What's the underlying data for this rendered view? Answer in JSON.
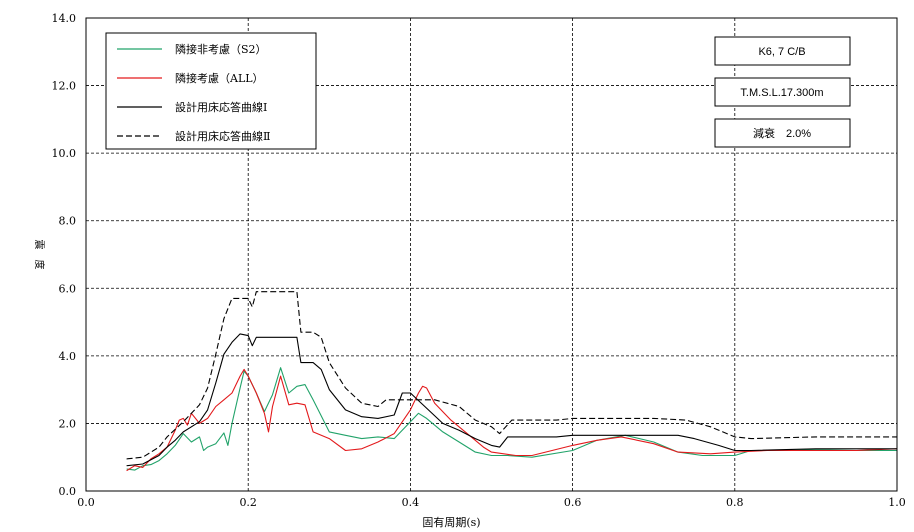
{
  "chart_data": {
    "type": "line",
    "title": "",
    "xlabel": "固有周期(s)",
    "ylabel": "震　度",
    "xlim": [
      0.0,
      1.0
    ],
    "ylim": [
      0.0,
      14.0
    ],
    "x_ticks": [
      "0.0",
      "0.2",
      "0.4",
      "0.6",
      "0.8",
      "1.0"
    ],
    "y_ticks": [
      "0.0",
      "2.0",
      "4.0",
      "6.0",
      "8.0",
      "10.0",
      "12.0",
      "14.0"
    ],
    "grid": true,
    "legend_position": "top-left",
    "info_boxes": [
      "K6, 7 C/B",
      "T.M.S.L.17.300m",
      "減衰　2.0%"
    ],
    "series": [
      {
        "name": "隣接非考慮（S2）",
        "color": "#22a36a",
        "dash": "solid",
        "points": [
          [
            0.05,
            0.65
          ],
          [
            0.06,
            0.62
          ],
          [
            0.07,
            0.75
          ],
          [
            0.08,
            0.78
          ],
          [
            0.09,
            0.9
          ],
          [
            0.1,
            1.1
          ],
          [
            0.11,
            1.35
          ],
          [
            0.12,
            1.7
          ],
          [
            0.13,
            1.45
          ],
          [
            0.14,
            1.6
          ],
          [
            0.145,
            1.2
          ],
          [
            0.15,
            1.3
          ],
          [
            0.16,
            1.4
          ],
          [
            0.17,
            1.72
          ],
          [
            0.175,
            1.35
          ],
          [
            0.18,
            2.0
          ],
          [
            0.19,
            3.05
          ],
          [
            0.195,
            3.55
          ],
          [
            0.2,
            3.4
          ],
          [
            0.21,
            2.9
          ],
          [
            0.22,
            2.35
          ],
          [
            0.23,
            2.85
          ],
          [
            0.24,
            3.65
          ],
          [
            0.25,
            2.9
          ],
          [
            0.26,
            3.1
          ],
          [
            0.27,
            3.15
          ],
          [
            0.28,
            2.7
          ],
          [
            0.3,
            1.75
          ],
          [
            0.32,
            1.65
          ],
          [
            0.34,
            1.55
          ],
          [
            0.36,
            1.6
          ],
          [
            0.38,
            1.55
          ],
          [
            0.4,
            2.05
          ],
          [
            0.41,
            2.3
          ],
          [
            0.42,
            2.15
          ],
          [
            0.44,
            1.75
          ],
          [
            0.46,
            1.45
          ],
          [
            0.48,
            1.15
          ],
          [
            0.5,
            1.05
          ],
          [
            0.52,
            1.05
          ],
          [
            0.55,
            1.0
          ],
          [
            0.6,
            1.2
          ],
          [
            0.63,
            1.5
          ],
          [
            0.665,
            1.65
          ],
          [
            0.7,
            1.45
          ],
          [
            0.73,
            1.15
          ],
          [
            0.76,
            1.05
          ],
          [
            0.8,
            1.05
          ],
          [
            0.82,
            1.2
          ],
          [
            0.86,
            1.2
          ],
          [
            0.9,
            1.22
          ],
          [
            0.95,
            1.2
          ],
          [
            1.0,
            1.2
          ]
        ]
      },
      {
        "name": "隣接考慮（ALL）",
        "color": "#e31a1c",
        "dash": "solid",
        "points": [
          [
            0.05,
            0.6
          ],
          [
            0.06,
            0.75
          ],
          [
            0.07,
            0.7
          ],
          [
            0.08,
            0.95
          ],
          [
            0.09,
            1.1
          ],
          [
            0.1,
            1.3
          ],
          [
            0.11,
            1.8
          ],
          [
            0.115,
            2.1
          ],
          [
            0.12,
            2.15
          ],
          [
            0.125,
            1.95
          ],
          [
            0.13,
            2.3
          ],
          [
            0.14,
            2.0
          ],
          [
            0.15,
            2.15
          ],
          [
            0.16,
            2.5
          ],
          [
            0.17,
            2.7
          ],
          [
            0.18,
            2.9
          ],
          [
            0.19,
            3.4
          ],
          [
            0.195,
            3.6
          ],
          [
            0.2,
            3.4
          ],
          [
            0.21,
            2.9
          ],
          [
            0.22,
            2.3
          ],
          [
            0.225,
            1.75
          ],
          [
            0.23,
            2.5
          ],
          [
            0.24,
            3.4
          ],
          [
            0.25,
            2.55
          ],
          [
            0.26,
            2.6
          ],
          [
            0.27,
            2.55
          ],
          [
            0.28,
            1.75
          ],
          [
            0.3,
            1.55
          ],
          [
            0.32,
            1.2
          ],
          [
            0.34,
            1.25
          ],
          [
            0.36,
            1.45
          ],
          [
            0.38,
            1.7
          ],
          [
            0.4,
            2.4
          ],
          [
            0.41,
            2.9
          ],
          [
            0.415,
            3.1
          ],
          [
            0.42,
            3.05
          ],
          [
            0.43,
            2.6
          ],
          [
            0.45,
            2.1
          ],
          [
            0.47,
            1.7
          ],
          [
            0.49,
            1.3
          ],
          [
            0.5,
            1.15
          ],
          [
            0.53,
            1.05
          ],
          [
            0.55,
            1.05
          ],
          [
            0.6,
            1.35
          ],
          [
            0.63,
            1.5
          ],
          [
            0.66,
            1.6
          ],
          [
            0.7,
            1.4
          ],
          [
            0.73,
            1.15
          ],
          [
            0.77,
            1.1
          ],
          [
            0.8,
            1.15
          ],
          [
            0.84,
            1.2
          ],
          [
            0.9,
            1.2
          ],
          [
            0.95,
            1.2
          ],
          [
            1.0,
            1.25
          ]
        ]
      },
      {
        "name": "設計用床応答曲線Ⅰ",
        "color": "#000000",
        "dash": "solid",
        "points": [
          [
            0.05,
            0.75
          ],
          [
            0.07,
            0.8
          ],
          [
            0.09,
            1.05
          ],
          [
            0.1,
            1.3
          ],
          [
            0.11,
            1.5
          ],
          [
            0.12,
            1.75
          ],
          [
            0.13,
            1.9
          ],
          [
            0.14,
            2.05
          ],
          [
            0.15,
            2.4
          ],
          [
            0.16,
            3.2
          ],
          [
            0.17,
            4.05
          ],
          [
            0.18,
            4.4
          ],
          [
            0.19,
            4.65
          ],
          [
            0.2,
            4.6
          ],
          [
            0.205,
            4.3
          ],
          [
            0.21,
            4.55
          ],
          [
            0.22,
            4.55
          ],
          [
            0.23,
            4.55
          ],
          [
            0.24,
            4.55
          ],
          [
            0.25,
            4.55
          ],
          [
            0.26,
            4.55
          ],
          [
            0.265,
            3.8
          ],
          [
            0.28,
            3.8
          ],
          [
            0.29,
            3.6
          ],
          [
            0.3,
            3.0
          ],
          [
            0.32,
            2.4
          ],
          [
            0.34,
            2.2
          ],
          [
            0.36,
            2.15
          ],
          [
            0.38,
            2.25
          ],
          [
            0.39,
            2.9
          ],
          [
            0.4,
            2.9
          ],
          [
            0.44,
            2.0
          ],
          [
            0.46,
            1.8
          ],
          [
            0.48,
            1.55
          ],
          [
            0.5,
            1.35
          ],
          [
            0.51,
            1.3
          ],
          [
            0.52,
            1.6
          ],
          [
            0.58,
            1.6
          ],
          [
            0.6,
            1.65
          ],
          [
            0.7,
            1.65
          ],
          [
            0.73,
            1.65
          ],
          [
            0.75,
            1.55
          ],
          [
            0.78,
            1.35
          ],
          [
            0.8,
            1.2
          ],
          [
            0.82,
            1.2
          ],
          [
            0.9,
            1.25
          ],
          [
            1.0,
            1.25
          ]
        ]
      },
      {
        "name": "設計用床応答曲線Ⅱ",
        "color": "#000000",
        "dash": "dashed",
        "points": [
          [
            0.05,
            0.95
          ],
          [
            0.07,
            1.0
          ],
          [
            0.09,
            1.3
          ],
          [
            0.1,
            1.6
          ],
          [
            0.12,
            2.05
          ],
          [
            0.13,
            2.3
          ],
          [
            0.14,
            2.55
          ],
          [
            0.15,
            3.05
          ],
          [
            0.16,
            4.05
          ],
          [
            0.17,
            5.1
          ],
          [
            0.18,
            5.7
          ],
          [
            0.2,
            5.7
          ],
          [
            0.205,
            5.45
          ],
          [
            0.21,
            5.9
          ],
          [
            0.26,
            5.9
          ],
          [
            0.265,
            4.7
          ],
          [
            0.28,
            4.7
          ],
          [
            0.29,
            4.55
          ],
          [
            0.3,
            3.8
          ],
          [
            0.32,
            3.05
          ],
          [
            0.34,
            2.6
          ],
          [
            0.36,
            2.5
          ],
          [
            0.37,
            2.7
          ],
          [
            0.43,
            2.7
          ],
          [
            0.46,
            2.5
          ],
          [
            0.48,
            2.1
          ],
          [
            0.5,
            1.9
          ],
          [
            0.51,
            1.7
          ],
          [
            0.525,
            2.1
          ],
          [
            0.58,
            2.1
          ],
          [
            0.6,
            2.15
          ],
          [
            0.7,
            2.15
          ],
          [
            0.74,
            2.1
          ],
          [
            0.77,
            1.9
          ],
          [
            0.8,
            1.6
          ],
          [
            0.82,
            1.55
          ],
          [
            0.9,
            1.6
          ],
          [
            1.0,
            1.6
          ]
        ]
      }
    ]
  }
}
